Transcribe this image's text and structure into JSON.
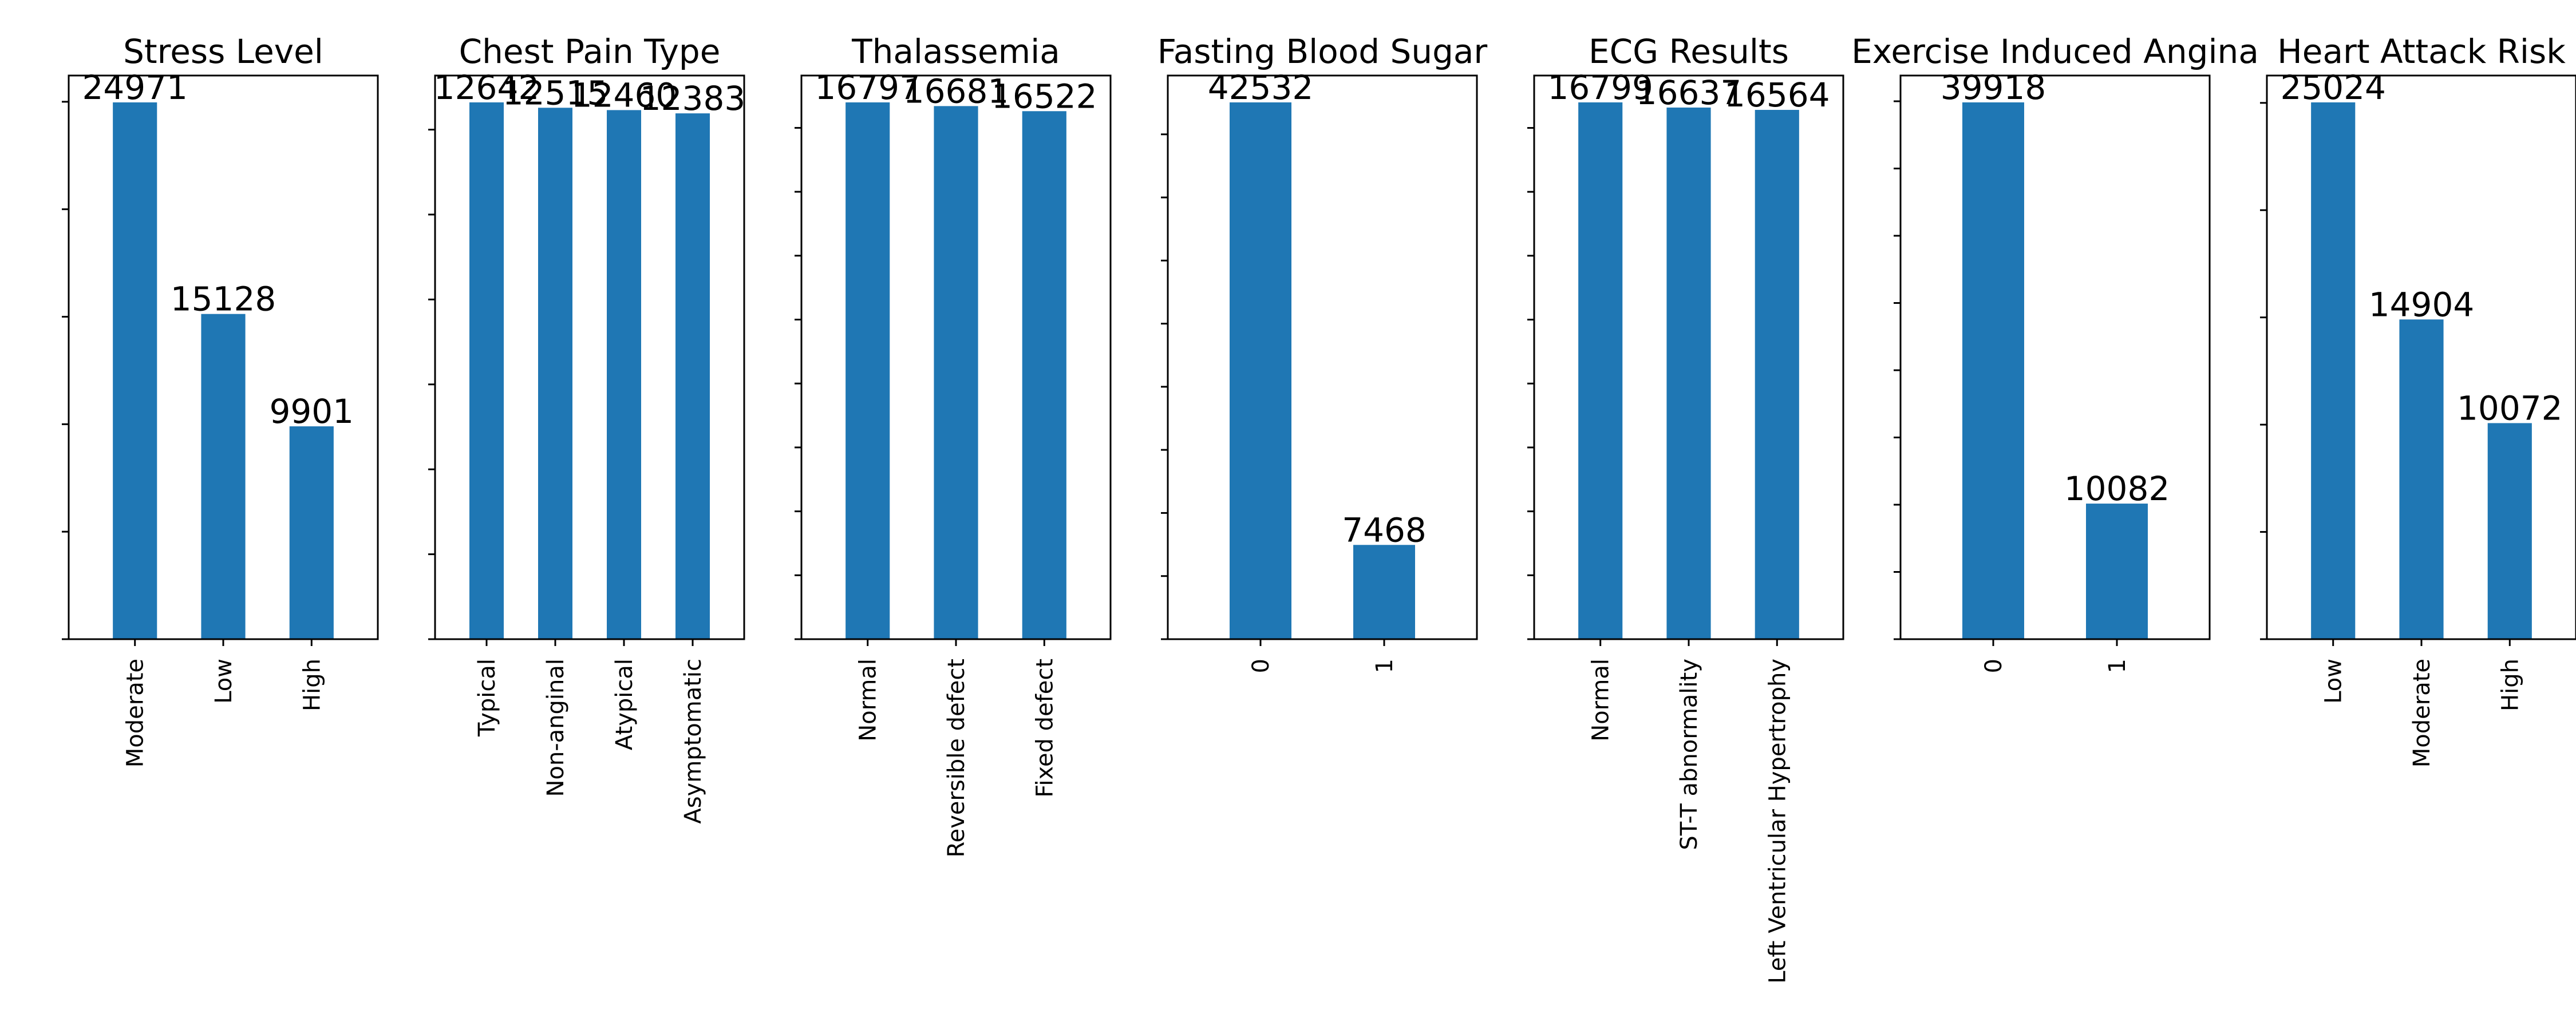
{
  "colors": {
    "bar": "#1f77b4",
    "axes": "#000000",
    "background": "#ffffff"
  },
  "chart_data": [
    {
      "type": "bar",
      "title": "Stress Level",
      "xlabel": "",
      "ylabel": "",
      "categories": [
        "Moderate",
        "Low",
        "High"
      ],
      "values": [
        24971,
        15128,
        9901
      ],
      "ylim": [
        0,
        26220
      ],
      "yticks": [
        0,
        5000,
        10000,
        15000,
        20000,
        25000
      ],
      "tick_labels_visible": false,
      "grid": false,
      "legend": false
    },
    {
      "type": "bar",
      "title": "Chest Pain Type",
      "xlabel": "",
      "ylabel": "",
      "categories": [
        "Typical",
        "Non-anginal",
        "Atypical",
        "Asymptomatic"
      ],
      "values": [
        12642,
        12515,
        12460,
        12383
      ],
      "ylim": [
        0,
        13274
      ],
      "yticks": [
        0,
        2000,
        4000,
        6000,
        8000,
        10000,
        12000
      ],
      "tick_labels_visible": false,
      "grid": false,
      "legend": false
    },
    {
      "type": "bar",
      "title": "Thalassemia",
      "xlabel": "",
      "ylabel": "",
      "categories": [
        "Normal",
        "Reversible defect",
        "Fixed defect"
      ],
      "values": [
        16797,
        16681,
        16522
      ],
      "ylim": [
        0,
        17637
      ],
      "yticks": [
        0,
        2000,
        4000,
        6000,
        8000,
        10000,
        12000,
        14000,
        16000
      ],
      "tick_labels_visible": false,
      "grid": false,
      "legend": false
    },
    {
      "type": "bar",
      "title": "Fasting Blood Sugar",
      "xlabel": "",
      "ylabel": "",
      "categories": [
        "0",
        "1"
      ],
      "values": [
        42532,
        7468
      ],
      "ylim": [
        0,
        44659
      ],
      "yticks": [
        0,
        5000,
        10000,
        15000,
        20000,
        25000,
        30000,
        35000,
        40000
      ],
      "tick_labels_visible": false,
      "grid": false,
      "legend": false
    },
    {
      "type": "bar",
      "title": "ECG Results",
      "xlabel": "",
      "ylabel": "",
      "categories": [
        "Normal",
        "ST-T abnormality",
        "Left Ventricular Hypertrophy"
      ],
      "values": [
        16799,
        16637,
        16564
      ],
      "ylim": [
        0,
        17639
      ],
      "yticks": [
        0,
        2000,
        4000,
        6000,
        8000,
        10000,
        12000,
        14000,
        16000
      ],
      "tick_labels_visible": false,
      "grid": false,
      "legend": false
    },
    {
      "type": "bar",
      "title": "Exercise Induced Angina",
      "xlabel": "",
      "ylabel": "",
      "categories": [
        "0",
        "1"
      ],
      "values": [
        39918,
        10082
      ],
      "ylim": [
        0,
        41914
      ],
      "yticks": [
        0,
        5000,
        10000,
        15000,
        20000,
        25000,
        30000,
        35000,
        40000
      ],
      "tick_labels_visible": false,
      "grid": false,
      "legend": false
    },
    {
      "type": "bar",
      "title": "Heart Attack Risk",
      "xlabel": "",
      "ylabel": "",
      "categories": [
        "Low",
        "Moderate",
        "High"
      ],
      "values": [
        25024,
        14904,
        10072
      ],
      "ylim": [
        0,
        26275
      ],
      "yticks": [
        0,
        5000,
        10000,
        15000,
        20000,
        25000
      ],
      "tick_labels_visible": false,
      "grid": false,
      "legend": false
    }
  ]
}
